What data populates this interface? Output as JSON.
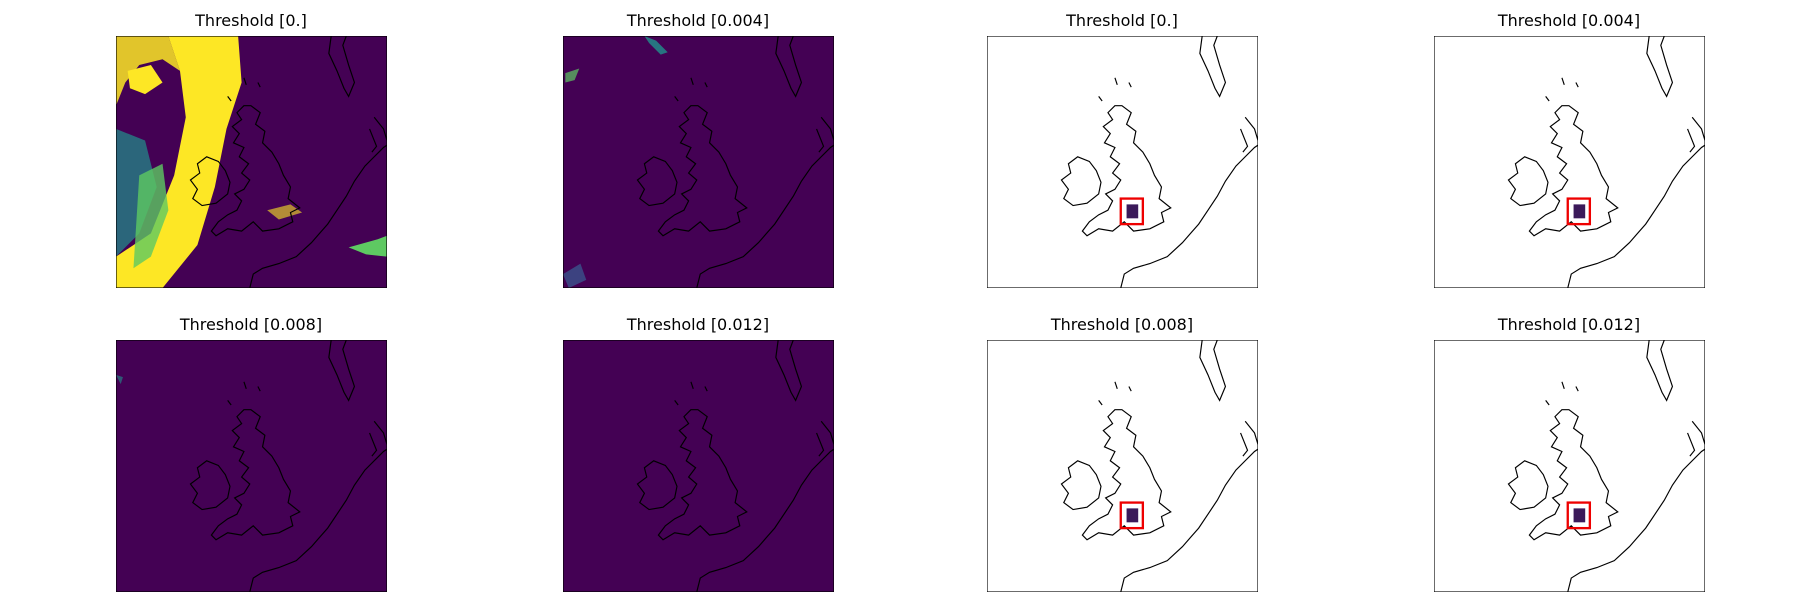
{
  "panels": [
    {
      "title": "Threshold [0.]"
    },
    {
      "title": "Threshold [0.004]"
    },
    {
      "title": "Threshold [0.]"
    },
    {
      "title": "Threshold [0.004]"
    },
    {
      "title": "Threshold [0.008]"
    },
    {
      "title": "Threshold [0.012]"
    },
    {
      "title": "Threshold [0.008]"
    },
    {
      "title": "Threshold [0.012]"
    }
  ]
}
